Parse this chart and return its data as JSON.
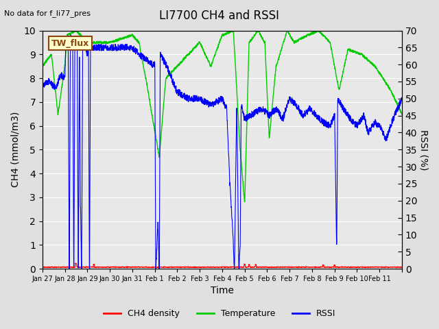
{
  "title": "LI7700 CH4 and RSSI",
  "subtitle": "No data for f_li77_pres",
  "box_label": "TW_flux",
  "xlabel": "Time",
  "ylabel_left": "CH4 (mmol/m3)",
  "ylabel_right": "RSSI (%)",
  "ylim_left": [
    0.0,
    10.0
  ],
  "ylim_right": [
    0,
    70
  ],
  "yticks_left": [
    0.0,
    1.0,
    2.0,
    3.0,
    4.0,
    5.0,
    6.0,
    7.0,
    8.0,
    9.0,
    10.0
  ],
  "yticks_right": [
    0,
    5,
    10,
    15,
    20,
    25,
    30,
    35,
    40,
    45,
    50,
    55,
    60,
    65,
    70
  ],
  "x_tick_positions": [
    0,
    1,
    2,
    3,
    4,
    5,
    6,
    7,
    8,
    9,
    10,
    11,
    12,
    13,
    14,
    15,
    16
  ],
  "x_tick_labels": [
    "Jan 27",
    "Jan 28",
    "Jan 29",
    "Jan 30",
    "Jan 31",
    "Feb 1",
    "Feb 2",
    "Feb 3",
    "Feb 4",
    "Feb 5",
    "Feb 6",
    "Feb 7",
    "Feb 8",
    "Feb 9",
    "Feb 10",
    "Feb 11",
    ""
  ],
  "xlim": [
    0,
    16
  ],
  "bg_color": "#e0e0e0",
  "plot_bg_color": "#e8e8e8",
  "grid_color": "white",
  "ch4_color": "#ff0000",
  "temp_color": "#00cc00",
  "rssi_color": "#0000ff",
  "legend_entries": [
    "CH4 density",
    "Temperature",
    "RSSI"
  ],
  "legend_colors": [
    "#ff0000",
    "#00cc00",
    "#0000ff"
  ]
}
